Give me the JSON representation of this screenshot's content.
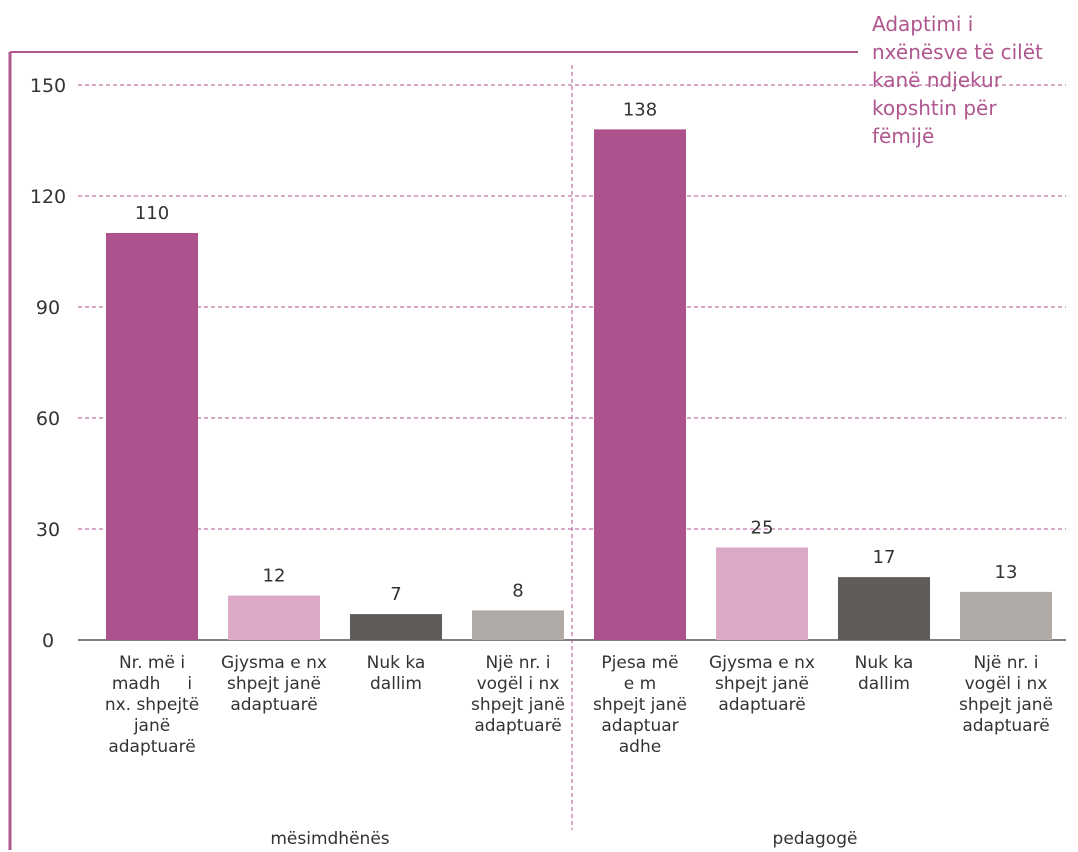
{
  "colors": {
    "frame": "#b0568f",
    "grid": "#b0568f",
    "axis_text": "#333333",
    "series": [
      "#ad528d",
      "#dba8c6",
      "#625c58",
      "#b0aaa7"
    ]
  },
  "chart_data": {
    "type": "bar",
    "title": "Adaptimi i\nnxënësve të cilët\nkanë ndjekur\nkopshtin për\nfëmijë",
    "ylim": [
      0,
      150
    ],
    "yticks": [
      0,
      30,
      60,
      90,
      120,
      150
    ],
    "grid": true,
    "groups": [
      {
        "label": "mësimdhënës",
        "bars": [
          {
            "label": "Nr. më i\nmadh     i\nnx. shpejtë\njanë\nadaptuarë",
            "value": 110
          },
          {
            "label": "Gjysma e nx\nshpejt janë\nadaptuarë",
            "value": 12
          },
          {
            "label": "Nuk ka\ndallim",
            "value": 7
          },
          {
            "label": "Një nr. i\nvogël i nx\nshpejt janë\nadaptuarë",
            "value": 8
          }
        ]
      },
      {
        "label": "pedagogë",
        "bars": [
          {
            "label": "Pjesa më\ne m\nshpejt janë\nadaptuar\nadhe",
            "value": 138
          },
          {
            "label": "Gjysma e nx\nshpejt janë\nadaptuarë",
            "value": 25
          },
          {
            "label": "Nuk ka\ndallim",
            "value": 17
          },
          {
            "label": "Një nr. i\nvogël i nx\nshpejt janë\nadaptuarë",
            "value": 13
          }
        ]
      }
    ]
  }
}
